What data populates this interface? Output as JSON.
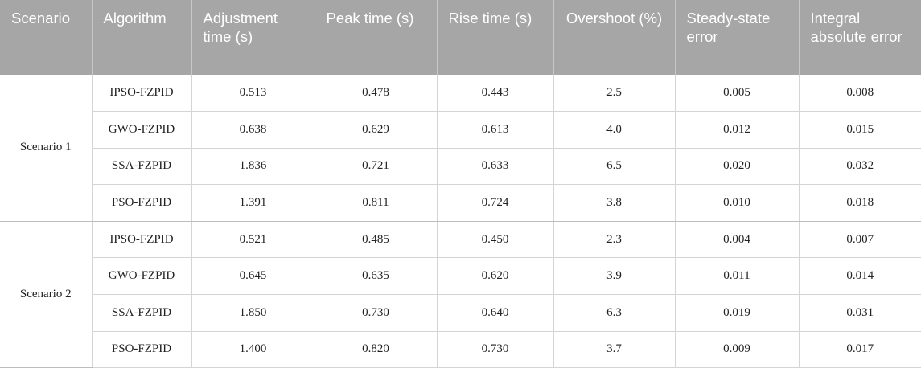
{
  "table": {
    "headers": [
      "Scenario",
      "Algorithm",
      "Adjustment time (s)",
      "Peak time (s)",
      "Rise time (s)",
      "Overshoot (%)",
      "Steady-state error",
      "Integral absolute error"
    ],
    "groups": [
      {
        "scenario": "Scenario 1",
        "rows": [
          [
            "IPSO-FZPID",
            "0.513",
            "0.478",
            "0.443",
            "2.5",
            "0.005",
            "0.008"
          ],
          [
            "GWO-FZPID",
            "0.638",
            "0.629",
            "0.613",
            "4.0",
            "0.012",
            "0.015"
          ],
          [
            "SSA-FZPID",
            "1.836",
            "0.721",
            "0.633",
            "6.5",
            "0.020",
            "0.032"
          ],
          [
            "PSO-FZPID",
            "1.391",
            "0.811",
            "0.724",
            "3.8",
            "0.010",
            "0.018"
          ]
        ]
      },
      {
        "scenario": "Scenario 2",
        "rows": [
          [
            "IPSO-FZPID",
            "0.521",
            "0.485",
            "0.450",
            "2.3",
            "0.004",
            "0.007"
          ],
          [
            "GWO-FZPID",
            "0.645",
            "0.635",
            "0.620",
            "3.9",
            "0.011",
            "0.014"
          ],
          [
            "SSA-FZPID",
            "1.850",
            "0.730",
            "0.640",
            "6.3",
            "0.019",
            "0.031"
          ],
          [
            "PSO-FZPID",
            "1.400",
            "0.820",
            "0.730",
            "3.7",
            "0.009",
            "0.017"
          ]
        ]
      }
    ]
  }
}
